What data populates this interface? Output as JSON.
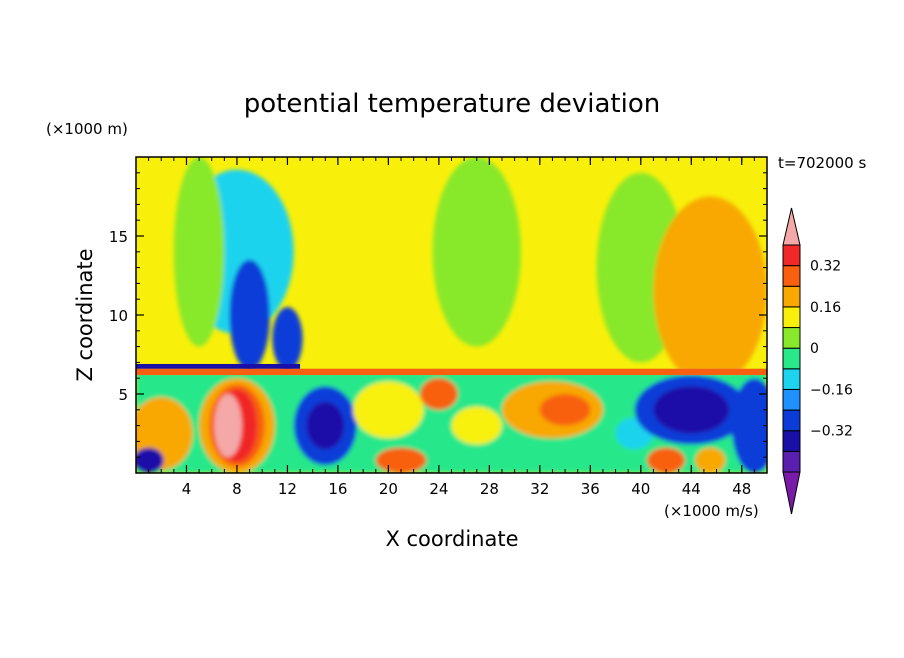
{
  "chart_data": {
    "type": "heatmap",
    "title": "potential temperature deviation",
    "xlabel": "X coordinate",
    "ylabel": "Z coordinate",
    "x_unit": "(×1000 m/s)",
    "y_unit": "(×1000 m)",
    "time_label": "t=702000 s",
    "xlim": [
      0,
      50
    ],
    "ylim": [
      0,
      20
    ],
    "x_ticks": [
      4,
      8,
      12,
      16,
      20,
      24,
      28,
      32,
      36,
      40,
      44,
      48
    ],
    "y_ticks": [
      5,
      10,
      15
    ],
    "colorbar": {
      "levels": [
        -0.48,
        -0.4,
        -0.32,
        -0.24,
        -0.16,
        -0.08,
        0,
        0.08,
        0.16,
        0.24,
        0.32,
        0.4
      ],
      "labels": [
        {
          "value": 0.32,
          "text": "0.32"
        },
        {
          "value": 0.16,
          "text": "0.16"
        },
        {
          "value": 0,
          "text": "0"
        },
        {
          "value": -0.16,
          "text": "−0.16"
        },
        {
          "value": -0.32,
          "text": "−0.32"
        }
      ],
      "colors": [
        "#7a1aa8",
        "#5b1fb0",
        "#1a10a8",
        "#0b3cd8",
        "#1e90ff",
        "#1ed3ee",
        "#28e88a",
        "#88e82a",
        "#f8f00a",
        "#f8a800",
        "#f86010",
        "#f02828",
        "#f4a8a8"
      ]
    },
    "regions": [
      {
        "type": "ellipse",
        "cx": 8,
        "cy": 14,
        "rx": 4.5,
        "ry": 5.2,
        "value": -0.16
      },
      {
        "type": "ellipse",
        "cx": 9,
        "cy": 10,
        "rx": 1.6,
        "ry": 3.5,
        "value": -0.32
      },
      {
        "type": "ellipse",
        "cx": 12,
        "cy": 8.5,
        "rx": 1.2,
        "ry": 2,
        "value": -0.32
      },
      {
        "type": "ellipse",
        "cx": 27,
        "cy": 14,
        "rx": 3.5,
        "ry": 6,
        "value": 0
      },
      {
        "type": "ellipse",
        "cx": 5,
        "cy": 14,
        "rx": 2,
        "ry": 6,
        "value": 0
      },
      {
        "type": "ellipse",
        "cx": 40,
        "cy": 13,
        "rx": 3.5,
        "ry": 6,
        "value": 0
      },
      {
        "type": "ellipse",
        "cx": 45.5,
        "cy": 11.5,
        "rx": 4.5,
        "ry": 6,
        "value": 0.16
      },
      {
        "type": "rect",
        "x0": 0,
        "x1": 50,
        "y0": 0,
        "y1": 6.4,
        "value": -0.08
      },
      {
        "type": "ellipse",
        "cx": 8,
        "cy": 3,
        "rx": 3,
        "ry": 3,
        "value": 0.16
      },
      {
        "type": "ellipse",
        "cx": 8,
        "cy": 3,
        "rx": 2.2,
        "ry": 2.6,
        "value": 0.24
      },
      {
        "type": "ellipse",
        "cx": 8,
        "cy": 3,
        "rx": 1.6,
        "ry": 2.3,
        "value": 0.32
      },
      {
        "type": "ellipse",
        "cx": 7.3,
        "cy": 3,
        "rx": 1.1,
        "ry": 2,
        "value": 0.4
      },
      {
        "type": "ellipse",
        "cx": 2,
        "cy": 2.5,
        "rx": 2.5,
        "ry": 2.3,
        "value": 0.16
      },
      {
        "type": "ellipse",
        "cx": 15,
        "cy": 3,
        "rx": 2.5,
        "ry": 2.5,
        "value": -0.32
      },
      {
        "type": "ellipse",
        "cx": 15,
        "cy": 3,
        "rx": 1.5,
        "ry": 1.5,
        "value": -0.4
      },
      {
        "type": "ellipse",
        "cx": 20,
        "cy": 4,
        "rx": 2.8,
        "ry": 1.8,
        "value": 0.08
      },
      {
        "type": "ellipse",
        "cx": 24,
        "cy": 5,
        "rx": 1.5,
        "ry": 1,
        "value": 0.24
      },
      {
        "type": "ellipse",
        "cx": 21,
        "cy": 0.8,
        "rx": 2,
        "ry": 0.8,
        "value": 0.24
      },
      {
        "type": "ellipse",
        "cx": 27,
        "cy": 3,
        "rx": 2,
        "ry": 1.2,
        "value": 0.08
      },
      {
        "type": "ellipse",
        "cx": 33,
        "cy": 4,
        "rx": 4,
        "ry": 1.8,
        "value": 0.16
      },
      {
        "type": "ellipse",
        "cx": 34,
        "cy": 4,
        "rx": 2,
        "ry": 1,
        "value": 0.24
      },
      {
        "type": "ellipse",
        "cx": 39.5,
        "cy": 2.5,
        "rx": 1.5,
        "ry": 1,
        "value": -0.16
      },
      {
        "type": "ellipse",
        "cx": 44,
        "cy": 4,
        "rx": 4.5,
        "ry": 2.2,
        "value": -0.32
      },
      {
        "type": "ellipse",
        "cx": 44,
        "cy": 4,
        "rx": 3,
        "ry": 1.5,
        "value": -0.4
      },
      {
        "type": "ellipse",
        "cx": 49,
        "cy": 3,
        "rx": 1.8,
        "ry": 3,
        "value": -0.32
      },
      {
        "type": "ellipse",
        "cx": 42,
        "cy": 0.8,
        "rx": 1.5,
        "ry": 0.8,
        "value": 0.24
      },
      {
        "type": "ellipse",
        "cx": 45.5,
        "cy": 0.8,
        "rx": 1.2,
        "ry": 0.8,
        "value": 0.16
      },
      {
        "type": "ellipse",
        "cx": 1,
        "cy": 0.8,
        "rx": 1.2,
        "ry": 0.8,
        "value": -0.4
      },
      {
        "type": "band",
        "x0": 0,
        "x1": 50,
        "y0": 6.2,
        "y1": 6.6,
        "value": 0.24
      },
      {
        "type": "band",
        "x0": 0,
        "x1": 13,
        "y0": 6.6,
        "y1": 6.9,
        "value": -0.4
      }
    ],
    "background_value": 0.08
  }
}
